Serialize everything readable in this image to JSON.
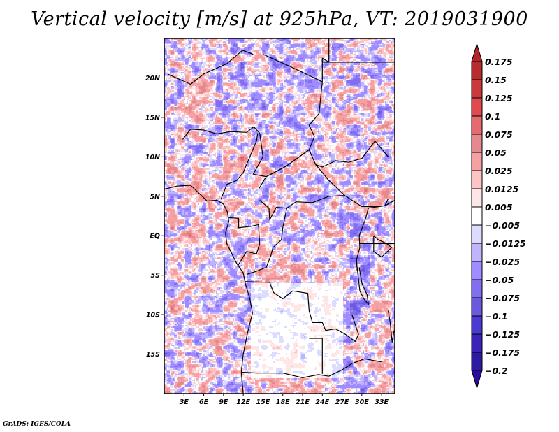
{
  "title": "Vertical velocity [m/s] at 925hPa, VT: 2019031900",
  "credit": "GrADS: IGES/COLA",
  "chart_data": {
    "type": "heatmap",
    "title": "Vertical velocity [m/s] at 925hPa, VT: 2019031900",
    "variable": "Vertical velocity",
    "units": "m/s",
    "level": "925hPa",
    "valid_time": "2019031900",
    "projection": "lat-lon",
    "xlim": [
      0,
      35
    ],
    "ylim": [
      -20,
      25
    ],
    "x_ticks": [
      {
        "value": 3,
        "label": "3E"
      },
      {
        "value": 6,
        "label": "6E"
      },
      {
        "value": 9,
        "label": "9E"
      },
      {
        "value": 12,
        "label": "12E"
      },
      {
        "value": 15,
        "label": "15E"
      },
      {
        "value": 18,
        "label": "18E"
      },
      {
        "value": 21,
        "label": "21E"
      },
      {
        "value": 24,
        "label": "24E"
      },
      {
        "value": 27,
        "label": "27E"
      },
      {
        "value": 30,
        "label": "30E"
      },
      {
        "value": 33,
        "label": "33E"
      }
    ],
    "y_ticks": [
      {
        "value": 20,
        "label": "20N"
      },
      {
        "value": 15,
        "label": "15N"
      },
      {
        "value": 10,
        "label": "10N"
      },
      {
        "value": 5,
        "label": "5N"
      },
      {
        "value": 0,
        "label": "EQ"
      },
      {
        "value": -5,
        "label": "5S"
      },
      {
        "value": -10,
        "label": "10S"
      },
      {
        "value": -15,
        "label": "15S"
      }
    ],
    "colorbar": {
      "placement": "right",
      "extend": "both",
      "levels": [
        {
          "label": "0.175",
          "value": 0.175
        },
        {
          "label": "0.15",
          "value": 0.15
        },
        {
          "label": "0.125",
          "value": 0.125
        },
        {
          "label": "0.1",
          "value": 0.1
        },
        {
          "label": "0.075",
          "value": 0.075
        },
        {
          "label": "0.05",
          "value": 0.05
        },
        {
          "label": "0.025",
          "value": 0.025
        },
        {
          "label": "0.0125",
          "value": 0.0125
        },
        {
          "label": "0.005",
          "value": 0.005
        },
        {
          "label": "-0.005",
          "value": -0.005
        },
        {
          "label": "-0.0125",
          "value": -0.0125
        },
        {
          "label": "-0.025",
          "value": -0.025
        },
        {
          "label": "-0.05",
          "value": -0.05
        },
        {
          "label": "-0.075",
          "value": -0.075
        },
        {
          "label": "-0.1",
          "value": -0.1
        },
        {
          "label": "-0.125",
          "value": -0.125
        },
        {
          "label": "-0.175",
          "value": -0.175
        },
        {
          "label": "-0.2",
          "value": -0.2
        }
      ],
      "colors": [
        "#b4242a",
        "#b82b2e",
        "#c83a3c",
        "#e04b4e",
        "#e66a6e",
        "#e48a8e",
        "#f5a0a2",
        "#fdc4c5",
        "#fee6e6",
        "#ffffff",
        "#dcdcfe",
        "#c0b4fe",
        "#a08cfe",
        "#826ef0",
        "#6c5ade",
        "#4a3cd2",
        "#3c24b8",
        "#2c1ca4",
        "#2a0aa0"
      ]
    },
    "regions": {
      "north_sahara": "mixed positive/negative small-scale pattern",
      "guinea_coast_band_5N_10N": "positive (red) streaks",
      "east_african_rift_lakes": "negative (blue) values",
      "angola_zambia_interior": "near zero (white)"
    }
  }
}
